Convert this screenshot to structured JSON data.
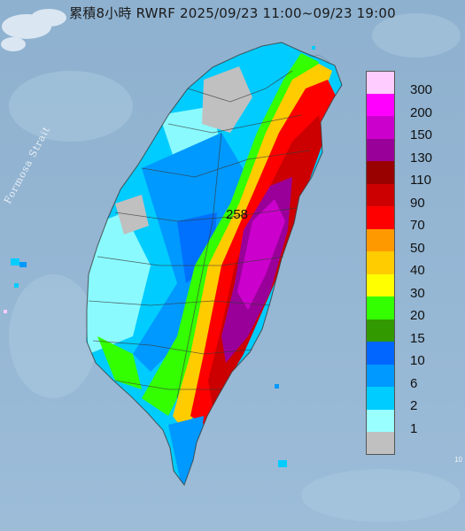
{
  "title": "累積8小時 RWRF 2025/09/23 11:00~09/23 19:00",
  "map": {
    "strait_label": "Formosa Strait",
    "max_value_label": "258",
    "corner_label": "10"
  },
  "legend": {
    "items": [
      {
        "label": "300",
        "color": "#ffccff"
      },
      {
        "label": "200",
        "color": "#ff00ff"
      },
      {
        "label": "150",
        "color": "#cc00cc"
      },
      {
        "label": "130",
        "color": "#990099"
      },
      {
        "label": "110",
        "color": "#990000"
      },
      {
        "label": "90",
        "color": "#cc0000"
      },
      {
        "label": "70",
        "color": "#ff0000"
      },
      {
        "label": "50",
        "color": "#ff9900"
      },
      {
        "label": "40",
        "color": "#ffcc00"
      },
      {
        "label": "30",
        "color": "#ffff00"
      },
      {
        "label": "20",
        "color": "#33ff00"
      },
      {
        "label": "15",
        "color": "#339900"
      },
      {
        "label": "10",
        "color": "#0066ff"
      },
      {
        "label": "6",
        "color": "#0099ff"
      },
      {
        "label": "2",
        "color": "#00ccff"
      },
      {
        "label": "1",
        "color": "#99ffff"
      },
      {
        "label": "",
        "color": "#c0c0c0"
      }
    ]
  }
}
